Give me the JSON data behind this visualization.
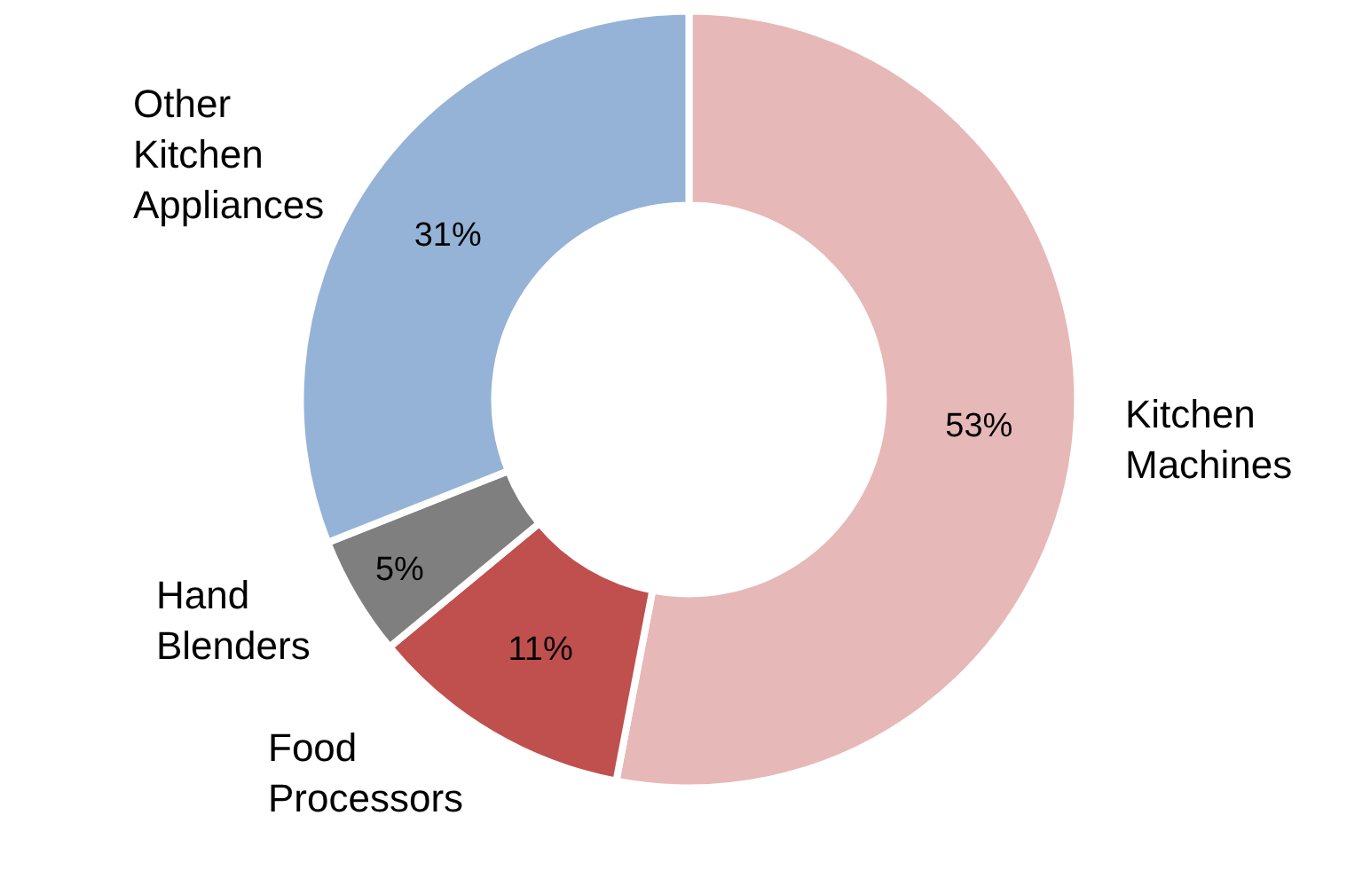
{
  "chart_data": {
    "type": "donut",
    "categories": [
      "Kitchen Machines",
      "Food Processors",
      "Hand Blenders",
      "Other Kitchen Appliances"
    ],
    "values": [
      53,
      11,
      5,
      31
    ],
    "colors": [
      "#e6b8b7",
      "#c0504d",
      "#7f7f7f",
      "#95b3d7"
    ],
    "value_labels": [
      "53%",
      "11%",
      "5%",
      "31%"
    ],
    "legend": false
  }
}
